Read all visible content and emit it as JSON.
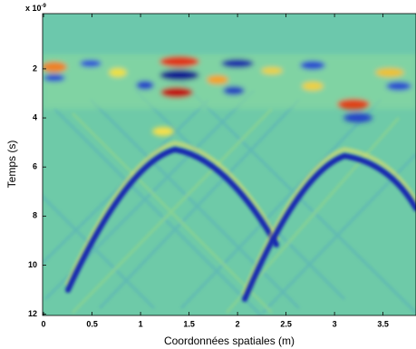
{
  "chart_data": {
    "type": "image",
    "xlabel": "Coordonnées spatiales (m)",
    "ylabel": "Temps (s)",
    "y_exponent_base": "x 10",
    "y_exponent_power": "-9",
    "xlim": [
      -0.01,
      3.84
    ],
    "xticks": [
      0,
      0.5,
      1,
      1.5,
      2,
      2.5,
      3,
      3.5
    ],
    "ylim": [
      -0.25,
      12.05
    ],
    "yticks": [
      2,
      4,
      6,
      8,
      10,
      12
    ],
    "y_reversed": true
  }
}
